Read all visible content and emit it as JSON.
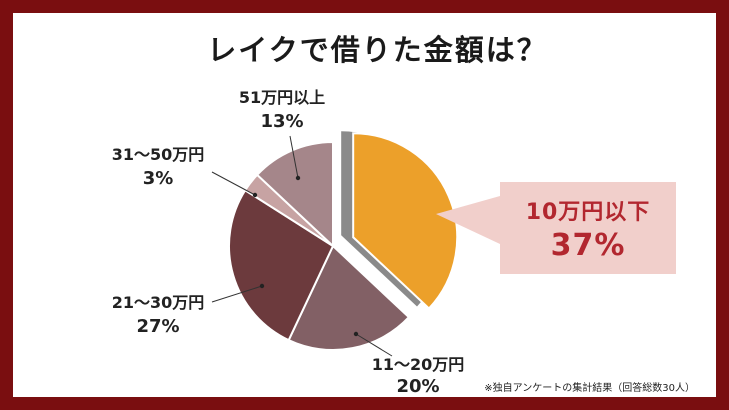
{
  "title": "レイクで借りた金額は？",
  "footnote": "※独自アンケートの集計結果（回答総数30人）",
  "colors": {
    "frame": "#7a0e10",
    "highlight": "#f3e02a",
    "callout_bg": "#f1cfcb",
    "callout_text": "#b2272f"
  },
  "chart_data": {
    "type": "pie",
    "title": "レイクで借りた金額は？",
    "slices": [
      {
        "label": "10万円以下",
        "value": 37,
        "pct_label": "37%",
        "color": "#eca02a",
        "exploded": true
      },
      {
        "label": "11～20万円",
        "value": 20,
        "pct_label": "20%",
        "color": "#826065"
      },
      {
        "label": "21～30万円",
        "value": 27,
        "pct_label": "27%",
        "color": "#6c3a3d"
      },
      {
        "label": "31～50万円",
        "value": 3,
        "pct_label": "3%",
        "color": "#c7a3a3"
      },
      {
        "label": "51万円以上",
        "value": 13,
        "pct_label": "13%",
        "color": "#a5868a"
      }
    ],
    "legend": "none"
  }
}
